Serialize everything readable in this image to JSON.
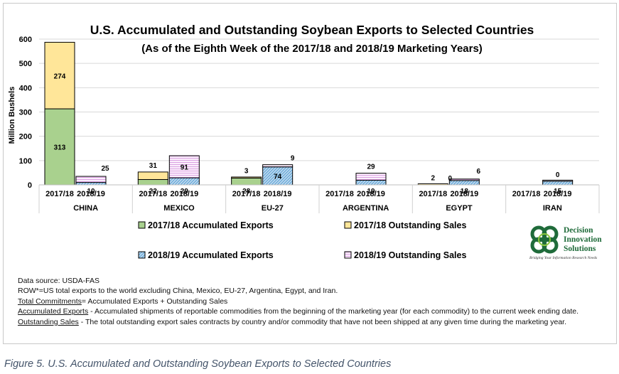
{
  "chart_data": {
    "type": "bar",
    "stacked": true,
    "title": "U.S. Accumulated and Outstanding Soybean Exports to Selected Countries",
    "subtitle": "(As of the Eighth Week of the 2017/18 and 2018/19 Marketing Years)",
    "ylabel": "Million Bushels",
    "ylim": [
      0,
      600
    ],
    "yticks": [
      "0",
      "100",
      "200",
      "300",
      "400",
      "500",
      "600"
    ],
    "groups": [
      "CHINA",
      "MEXICO",
      "EU-27",
      "ARGENTINA",
      "EGYPT",
      "IRAN"
    ],
    "periods": [
      "2017/18",
      "2018/19"
    ],
    "grid": true,
    "legend_position": "bottom",
    "series": [
      {
        "name": "2017/18 Accumulated Exports",
        "period": "2017/18",
        "color": "#a9d18e",
        "pattern": "solid",
        "values": [
          313,
          22,
          28,
          null,
          null,
          null
        ],
        "labels": [
          "313",
          "22",
          "28",
          "",
          "",
          ""
        ]
      },
      {
        "name": "2017/18 Outstanding Sales",
        "period": "2017/18",
        "color": "#ffe699",
        "pattern": "solid",
        "values": [
          274,
          31,
          3,
          null,
          2,
          null
        ],
        "labels": [
          "274",
          "31",
          "3",
          "",
          "2",
          ""
        ]
      },
      {
        "name": "2018/19 Accumulated Exports",
        "period": "2018/19",
        "color": "#bdd7ee",
        "pattern": "diagonal",
        "values": [
          10,
          29,
          74,
          19,
          18,
          15
        ],
        "labels": [
          "10",
          "29",
          "74",
          "19",
          "18",
          "15"
        ]
      },
      {
        "name": "2018/19 Outstanding Sales",
        "period": "2018/19",
        "color": "#f4d9f7",
        "pattern": "horizontal",
        "values": [
          25,
          91,
          9,
          29,
          6,
          0
        ],
        "labels": [
          "25",
          "91",
          "9",
          "29",
          "6",
          "0"
        ]
      }
    ],
    "extra_labels": [
      {
        "group": "EGYPT",
        "period": "2017/18",
        "text": "0"
      }
    ]
  },
  "notes": {
    "source": "Data source: USDA-FAS",
    "row": "ROW*=US total exports to the world excluding China, Mexico, EU-27, Argentina, Egypt, and Iran.",
    "total_term": "Total Commitments",
    "total_def": "= Accumulated Exports + Outstanding Sales",
    "accum_term": "Accumulated Exports",
    "accum_def": " - Accumulated shipments of reportable commodities from the beginning of the marketing year (for each commodity) to the current week ending date.",
    "out_term": "Outstanding Sales",
    "out_def": " - The total outstanding export sales contracts by country and/or commodity that have not been shipped at any given time during the marketing year."
  },
  "logo": {
    "line1": "Decision",
    "line2": "Innovation",
    "line3": "Solutions",
    "tagline": "Bridging Your Information Research Needs",
    "color": "#1f6b3a"
  },
  "caption": "Figure 5. U.S. Accumulated and Outstanding Soybean Exports to Selected Countries"
}
